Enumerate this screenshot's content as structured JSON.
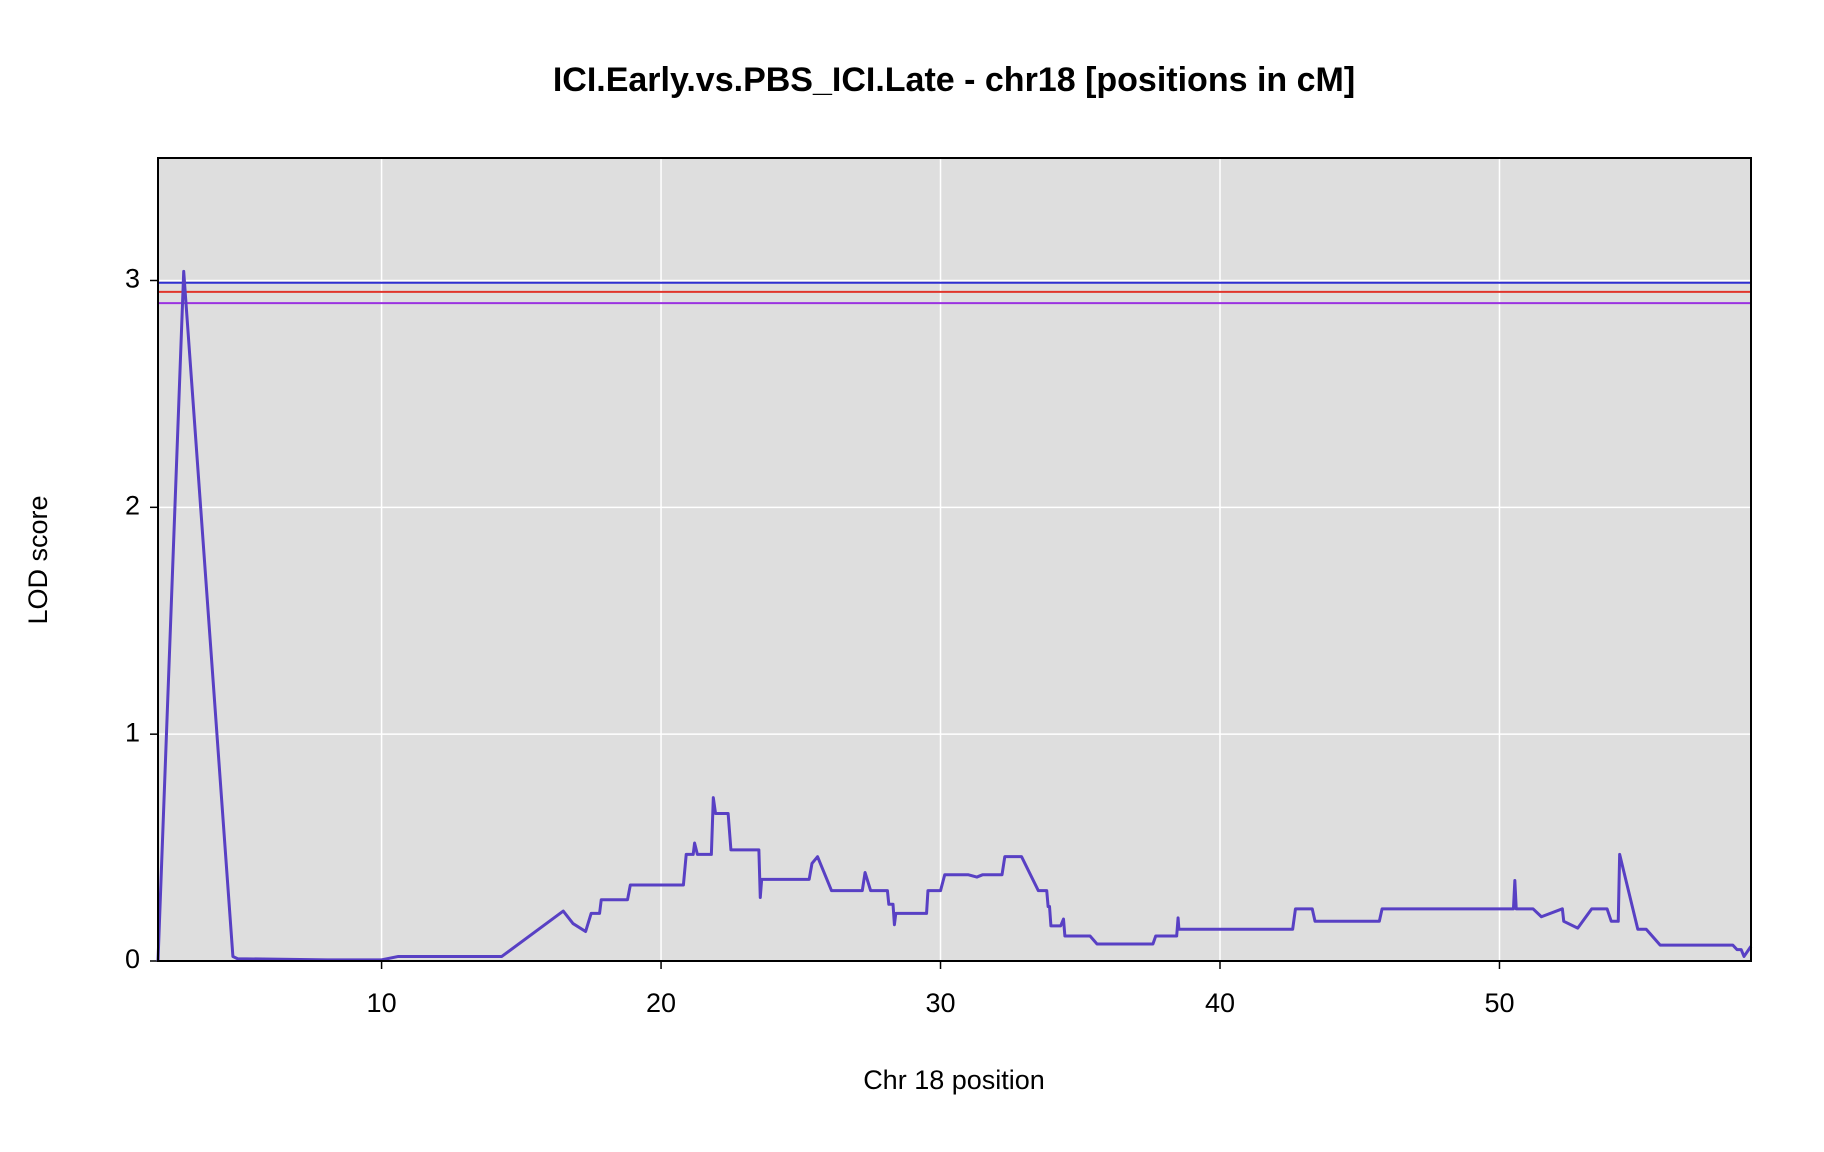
{
  "chart_data": {
    "type": "line",
    "title": "ICI.Early.vs.PBS_ICI.Late - chr18 [positions in cM]",
    "xlabel": "Chr 18 position",
    "ylabel": "LOD score",
    "xlim": [
      2.0,
      59.0
    ],
    "ylim": [
      0,
      3.54
    ],
    "xticks": [
      10,
      20,
      30,
      40,
      50
    ],
    "yticks": [
      0,
      1,
      2,
      3
    ],
    "grid": true,
    "background": "#dedede",
    "line_color": "#5840c4",
    "thresholds": [
      {
        "value": 2.99,
        "color": "#2f2fd0"
      },
      {
        "value": 2.95,
        "color": "#e0352b"
      },
      {
        "value": 2.9,
        "color": "#9a32e0"
      }
    ],
    "x": [
      2.0,
      2.92,
      4.68,
      4.85,
      8.07,
      10.0,
      10.6,
      14.3,
      16.5,
      16.85,
      17.3,
      17.5,
      17.8,
      17.86,
      18.8,
      18.9,
      20.8,
      20.9,
      21.15,
      21.2,
      21.3,
      21.8,
      21.87,
      21.95,
      22.4,
      22.5,
      23.5,
      23.55,
      23.6,
      25.3,
      25.4,
      25.6,
      26.1,
      27.2,
      27.3,
      27.5,
      28.1,
      28.15,
      28.3,
      28.35,
      28.4,
      29.5,
      29.55,
      30.0,
      30.15,
      31.0,
      31.3,
      31.5,
      32.2,
      32.3,
      32.9,
      33.5,
      33.8,
      33.85,
      33.9,
      33.95,
      34.3,
      34.4,
      34.45,
      35.35,
      35.6,
      37.6,
      37.7,
      38.45,
      38.5,
      38.53,
      42.6,
      42.7,
      43.3,
      43.4,
      45.7,
      45.8,
      50.5,
      50.55,
      50.6,
      51.2,
      51.5,
      52.25,
      52.3,
      52.8,
      53.3,
      53.85,
      54.0,
      54.25,
      54.3,
      54.95,
      55.25,
      55.75,
      58.35,
      58.5,
      58.65,
      58.75,
      59.0
    ],
    "values": [
      0,
      3.04,
      0.02,
      0.01,
      0.005,
      0.005,
      0.02,
      0.02,
      0.22,
      0.165,
      0.13,
      0.21,
      0.21,
      0.27,
      0.27,
      0.335,
      0.335,
      0.47,
      0.47,
      0.52,
      0.47,
      0.47,
      0.72,
      0.65,
      0.65,
      0.49,
      0.49,
      0.28,
      0.36,
      0.36,
      0.43,
      0.46,
      0.31,
      0.31,
      0.39,
      0.31,
      0.31,
      0.25,
      0.25,
      0.16,
      0.21,
      0.21,
      0.31,
      0.31,
      0.38,
      0.38,
      0.37,
      0.38,
      0.38,
      0.46,
      0.46,
      0.31,
      0.31,
      0.24,
      0.24,
      0.155,
      0.155,
      0.185,
      0.11,
      0.11,
      0.075,
      0.075,
      0.11,
      0.11,
      0.19,
      0.14,
      0.14,
      0.23,
      0.23,
      0.175,
      0.175,
      0.23,
      0.23,
      0.355,
      0.23,
      0.23,
      0.195,
      0.23,
      0.175,
      0.145,
      0.23,
      0.23,
      0.175,
      0.175,
      0.47,
      0.14,
      0.14,
      0.07,
      0.07,
      0.05,
      0.05,
      0.02,
      0.065
    ]
  }
}
